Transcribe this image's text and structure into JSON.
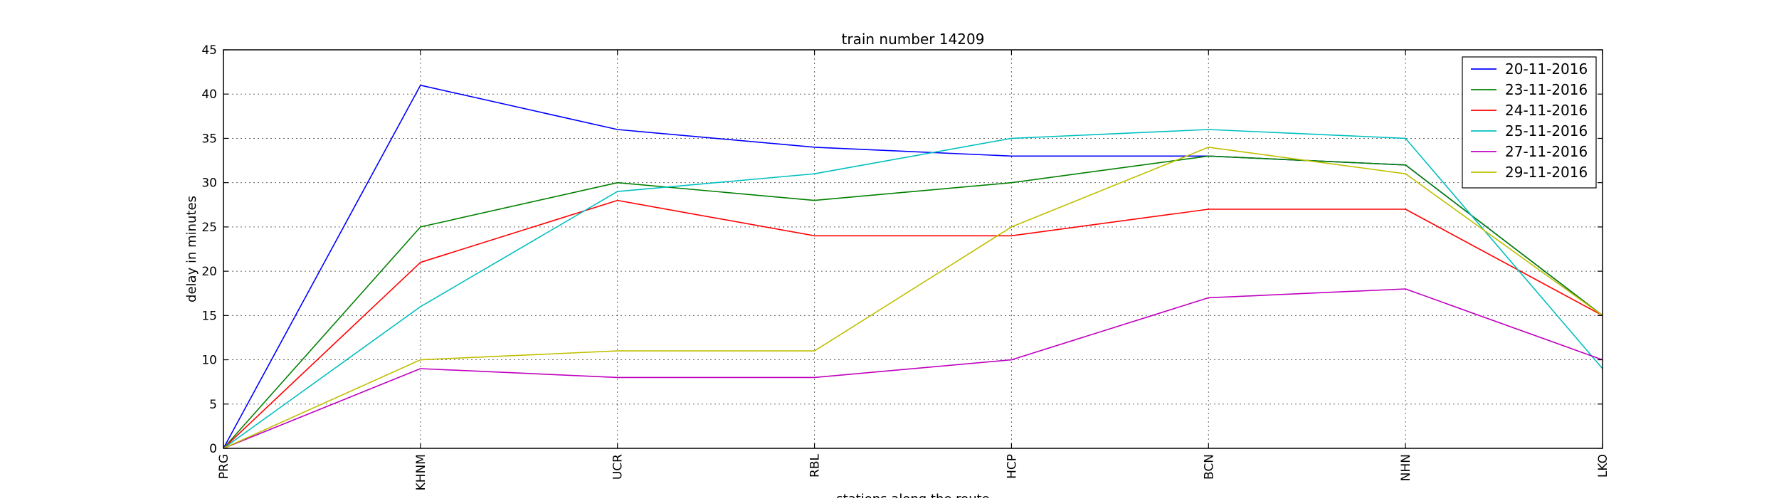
{
  "chart_data": {
    "type": "line",
    "title": "train number 14209",
    "xlabel": "stations along the route",
    "ylabel": "delay in minutes",
    "categories": [
      "PRG",
      "KHNM",
      "UCR",
      "RBL",
      "HCP",
      "BCN",
      "NHN",
      "LKO"
    ],
    "ylim": [
      0,
      45
    ],
    "yticks": [
      0,
      5,
      10,
      15,
      20,
      25,
      30,
      35,
      40,
      45
    ],
    "grid": true,
    "legend_position": "top-right",
    "series": [
      {
        "name": "20-11-2016",
        "color": "#0000ff",
        "values": [
          0,
          41,
          36,
          34,
          33,
          33,
          32,
          15
        ]
      },
      {
        "name": "23-11-2016",
        "color": "#008000",
        "values": [
          0,
          25,
          30,
          28,
          30,
          33,
          32,
          15
        ]
      },
      {
        "name": "24-11-2016",
        "color": "#ff0000",
        "values": [
          0,
          21,
          28,
          24,
          24,
          27,
          27,
          15
        ]
      },
      {
        "name": "25-11-2016",
        "color": "#00bfbf",
        "values": [
          0,
          16,
          29,
          31,
          35,
          36,
          35,
          9
        ]
      },
      {
        "name": "27-11-2016",
        "color": "#bf00bf",
        "values": [
          0,
          9,
          8,
          8,
          10,
          17,
          18,
          10
        ]
      },
      {
        "name": "29-11-2016",
        "color": "#bfbf00",
        "values": [
          0,
          10,
          11,
          11,
          25,
          34,
          31,
          15
        ]
      }
    ]
  }
}
